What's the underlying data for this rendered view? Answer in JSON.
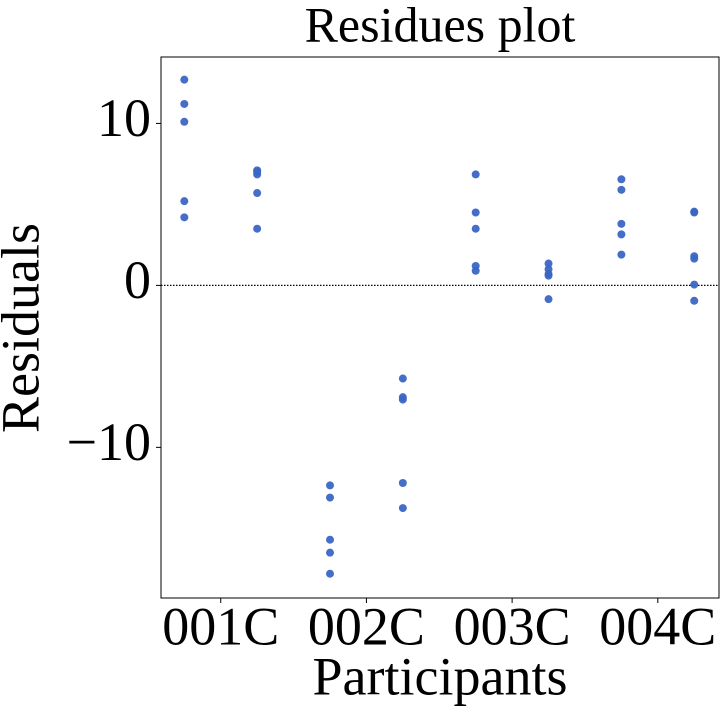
{
  "chart_data": {
    "type": "scatter",
    "title": "Residues plot",
    "x_label": "Participants",
    "y_label": "Residuals",
    "xlim": [
      -0.41,
      3.42
    ],
    "ylim": [
      -19.3,
      14.1
    ],
    "xticks": [
      {
        "value": 0,
        "label": "001C"
      },
      {
        "value": 1,
        "label": "002C"
      },
      {
        "value": 2,
        "label": "003C"
      },
      {
        "value": 3,
        "label": "004C"
      }
    ],
    "yticks": [
      {
        "value": -10,
        "label": "−10"
      },
      0,
      10
    ],
    "hline": 0,
    "series": [
      {
        "color": "#3a66c4",
        "x": [
          -0.25,
          -0.25,
          -0.25,
          -0.25,
          -0.25,
          0.25,
          0.25,
          0.25,
          0.25,
          0.25,
          0.75,
          0.75,
          0.75,
          0.75,
          0.75,
          1.25,
          1.25,
          1.25,
          1.25,
          1.25,
          1.75,
          1.75,
          1.75,
          1.75,
          1.75,
          2.25,
          2.25,
          2.25,
          2.25,
          2.25,
          2.75,
          2.75,
          2.75,
          2.75,
          2.75,
          3.25,
          3.25,
          3.25,
          3.25,
          3.25,
          3.25
        ],
        "values": [
          12.7,
          11.2,
          10.1,
          5.2,
          4.2,
          7.1,
          7.0,
          6.85,
          5.7,
          3.5,
          -12.35,
          -13.1,
          -15.7,
          -16.5,
          -17.8,
          -5.75,
          -6.9,
          -7.05,
          -12.2,
          -13.75,
          6.85,
          4.5,
          3.5,
          1.2,
          0.9,
          1.35,
          1.0,
          0.7,
          0.6,
          -0.85,
          6.55,
          5.9,
          3.8,
          3.15,
          1.9,
          4.55,
          4.5,
          1.8,
          1.65,
          0.05,
          -0.95
        ]
      }
    ]
  }
}
